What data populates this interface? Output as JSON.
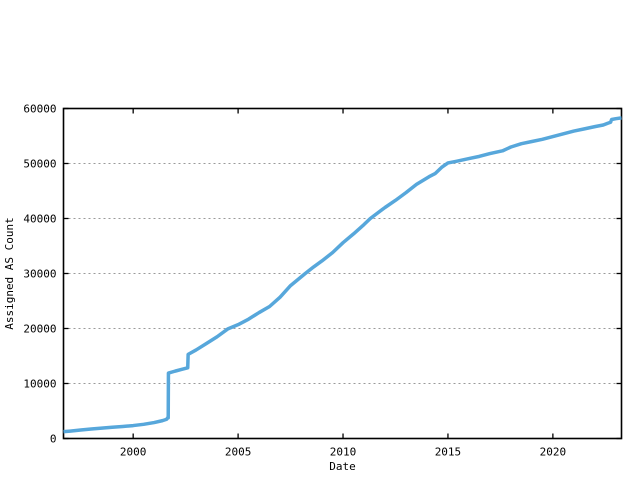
{
  "figure": {
    "background": "#ffffff",
    "border_color": "#000000",
    "grid_color": "#9a9a9a"
  },
  "chart_data": {
    "type": "line",
    "title": "",
    "xlabel": "Date",
    "ylabel": "Assigned AS Count",
    "xlim": [
      1996.68,
      2023.27
    ],
    "ylim": [
      0,
      60000
    ],
    "x_ticks": [
      2000,
      2005,
      2010,
      2015,
      2020
    ],
    "x_tick_labels": [
      "2000",
      "2005",
      "2010",
      "2015",
      "2020"
    ],
    "y_ticks": [
      0,
      10000,
      20000,
      30000,
      40000,
      50000,
      60000
    ],
    "y_tick_labels": [
      "0",
      "10000",
      "20000",
      "30000",
      "40000",
      "50000",
      "60000"
    ],
    "grid": "horizontal-dashed",
    "legend": "none",
    "series": [
      {
        "name": "Assigned AS Count",
        "color": "#57A7DB",
        "line_width": 3.5,
        "points": [
          [
            1996.68,
            1250
          ],
          [
            1997.0,
            1350
          ],
          [
            1997.5,
            1550
          ],
          [
            1998.0,
            1720
          ],
          [
            1998.5,
            1880
          ],
          [
            1999.0,
            2050
          ],
          [
            1999.5,
            2180
          ],
          [
            2000.0,
            2350
          ],
          [
            2000.5,
            2580
          ],
          [
            2001.0,
            2900
          ],
          [
            2001.4,
            3250
          ],
          [
            2001.6,
            3500
          ],
          [
            2001.63,
            3720
          ],
          [
            2001.67,
            3750
          ],
          [
            2001.68,
            11900
          ],
          [
            2002.0,
            12250
          ],
          [
            2002.3,
            12550
          ],
          [
            2002.6,
            12850
          ],
          [
            2002.62,
            15300
          ],
          [
            2003.0,
            16100
          ],
          [
            2003.5,
            17300
          ],
          [
            2004.0,
            18500
          ],
          [
            2004.5,
            19900
          ],
          [
            2005.0,
            20700
          ],
          [
            2005.5,
            21700
          ],
          [
            2006.0,
            22900
          ],
          [
            2006.5,
            24000
          ],
          [
            2007.0,
            25700
          ],
          [
            2007.5,
            27800
          ],
          [
            2008.2,
            30000
          ],
          [
            2008.6,
            31200
          ],
          [
            2009.0,
            32300
          ],
          [
            2009.5,
            33800
          ],
          [
            2010.0,
            35600
          ],
          [
            2010.5,
            37200
          ],
          [
            2011.0,
            38900
          ],
          [
            2011.3,
            40000
          ],
          [
            2012.0,
            42000
          ],
          [
            2012.5,
            43300
          ],
          [
            2013.0,
            44700
          ],
          [
            2013.5,
            46200
          ],
          [
            2014.1,
            47600
          ],
          [
            2014.4,
            48200
          ],
          [
            2014.7,
            49300
          ],
          [
            2015.0,
            50100
          ],
          [
            2015.4,
            50400
          ],
          [
            2016.0,
            50900
          ],
          [
            2016.5,
            51300
          ],
          [
            2017.0,
            51800
          ],
          [
            2017.6,
            52300
          ],
          [
            2018.0,
            53000
          ],
          [
            2018.5,
            53600
          ],
          [
            2019.0,
            54000
          ],
          [
            2019.5,
            54400
          ],
          [
            2020.0,
            54900
          ],
          [
            2020.5,
            55400
          ],
          [
            2021.0,
            55900
          ],
          [
            2021.5,
            56300
          ],
          [
            2022.0,
            56700
          ],
          [
            2022.4,
            57000
          ],
          [
            2022.6,
            57300
          ],
          [
            2022.75,
            57500
          ],
          [
            2022.8,
            58000
          ],
          [
            2023.0,
            58150
          ],
          [
            2023.27,
            58300
          ]
        ]
      }
    ]
  }
}
